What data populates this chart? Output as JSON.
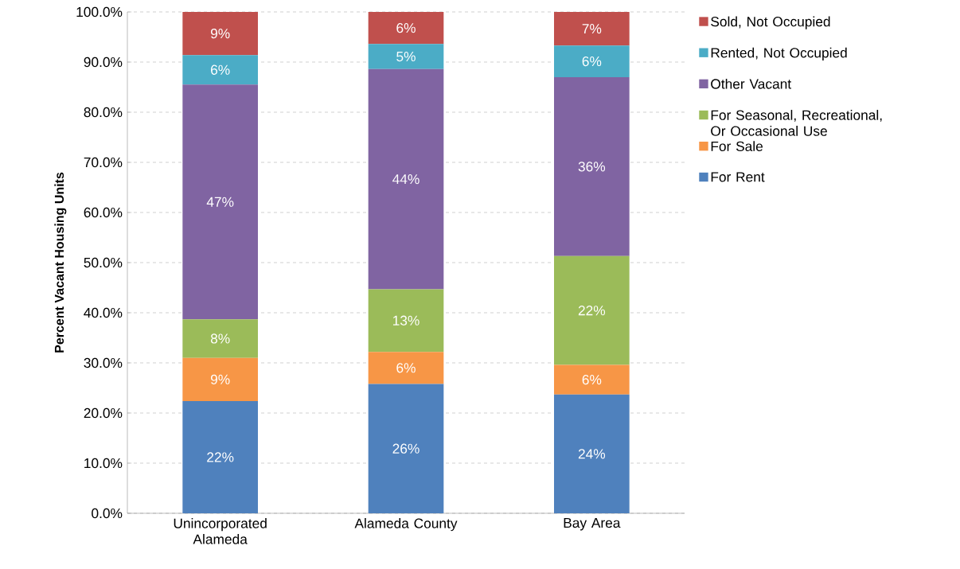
{
  "chart_data": {
    "type": "bar",
    "stacked": true,
    "ylabel": "Percent Vacant Housing Units",
    "categories": [
      "Unincorporated Alameda",
      "Alameda County",
      "Bay Area"
    ],
    "series": [
      {
        "name": "For Rent",
        "color": "#4f81bd",
        "values": [
          22.4,
          25.8,
          23.7
        ],
        "value_labels": [
          "22%",
          "26%",
          "24%"
        ]
      },
      {
        "name": "For Sale",
        "color": "#f79646",
        "values": [
          8.6,
          6.4,
          5.9
        ],
        "value_labels": [
          "9%",
          "6%",
          "6%"
        ]
      },
      {
        "name": "For Seasonal, Recreational, Or Occasional Use",
        "color": "#9bbb59",
        "values": [
          7.7,
          12.5,
          21.7
        ],
        "value_labels": [
          "8%",
          "13%",
          "22%"
        ]
      },
      {
        "name": "Other Vacant",
        "color": "#8064a2",
        "values": [
          46.8,
          43.9,
          35.7
        ],
        "value_labels": [
          "47%",
          "44%",
          "36%"
        ]
      },
      {
        "name": "Rented, Not Occupied",
        "color": "#4bacc6",
        "values": [
          5.9,
          5.0,
          6.3
        ],
        "value_labels": [
          "6%",
          "5%",
          "6%"
        ]
      },
      {
        "name": "Sold, Not Occupied",
        "color": "#c0504d",
        "values": [
          8.6,
          6.4,
          6.7
        ],
        "value_labels": [
          "9%",
          "6%",
          "7%"
        ]
      }
    ],
    "ylim": [
      0,
      100
    ],
    "yticks": [
      {
        "value": 0,
        "label": "0.0%"
      },
      {
        "value": 10,
        "label": "10.0%"
      },
      {
        "value": 20,
        "label": "20.0%"
      },
      {
        "value": 30,
        "label": "30.0%"
      },
      {
        "value": 40,
        "label": "40.0%"
      },
      {
        "value": 50,
        "label": "50.0%"
      },
      {
        "value": 60,
        "label": "60.0%"
      },
      {
        "value": 70,
        "label": "70.0%"
      },
      {
        "value": 80,
        "label": "80.0%"
      },
      {
        "value": 90,
        "label": "90.0%"
      },
      {
        "value": 100,
        "label": "100.0%"
      }
    ],
    "grid": "y",
    "legend": "right"
  }
}
